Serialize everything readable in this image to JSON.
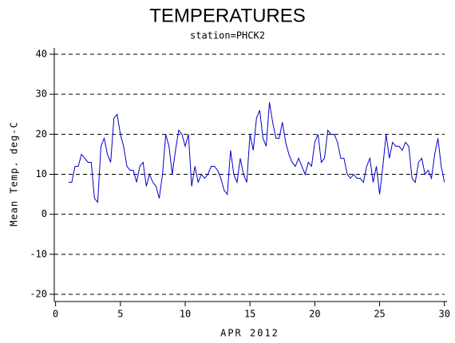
{
  "chart_data": {
    "type": "line",
    "title": "TEMPERATURES",
    "subtitle": "station=PHCK2",
    "x_label": "APR 2012",
    "y_label": "Mean Temp. deg-C",
    "xlim": [
      -0.1,
      30.2
    ],
    "xticks": [
      0,
      5,
      10,
      15,
      20,
      25,
      30
    ],
    "ylim": [
      -21.8,
      41.6
    ],
    "yticks": [
      -20,
      -10,
      0,
      10,
      20,
      30,
      40
    ],
    "grid": true,
    "x": [
      1,
      1.25,
      1.5,
      1.75,
      2,
      2.25,
      2.5,
      2.75,
      3,
      3.25,
      3.5,
      3.75,
      4,
      4.25,
      4.5,
      4.75,
      5,
      5.25,
      5.5,
      5.75,
      6,
      6.25,
      6.5,
      6.75,
      7,
      7.25,
      7.5,
      7.75,
      8,
      8.25,
      8.5,
      8.75,
      9,
      9.25,
      9.5,
      9.75,
      10,
      10.25,
      10.5,
      10.75,
      11,
      11.25,
      11.5,
      11.75,
      12,
      12.25,
      12.5,
      12.75,
      13,
      13.25,
      13.5,
      13.75,
      14,
      14.25,
      14.5,
      14.75,
      15,
      15.25,
      15.5,
      15.75,
      16,
      16.25,
      16.5,
      16.75,
      17,
      17.25,
      17.5,
      17.75,
      18,
      18.25,
      18.5,
      18.75,
      19,
      19.25,
      19.5,
      19.75,
      20,
      20.25,
      20.5,
      20.75,
      21,
      21.25,
      21.5,
      21.75,
      22,
      22.25,
      22.5,
      22.75,
      23,
      23.25,
      23.5,
      23.75,
      24,
      24.25,
      24.5,
      24.75,
      25,
      25.25,
      25.5,
      25.75,
      26,
      26.25,
      26.5,
      26.75,
      27,
      27.25,
      27.5,
      27.75,
      28,
      28.25,
      28.5,
      28.75,
      29,
      29.25,
      29.5,
      29.75,
      30
    ],
    "series": [
      {
        "name": "Mean Temp",
        "color": "#0000cc",
        "values": [
          8,
          8,
          12,
          12,
          15,
          14,
          13,
          13,
          4,
          3,
          17,
          19,
          15,
          13,
          24,
          25,
          20,
          17,
          12,
          11,
          11,
          8,
          12,
          13,
          7,
          10,
          8,
          7,
          4,
          10,
          20,
          17,
          10,
          16,
          21,
          20,
          17,
          20,
          7,
          12,
          8,
          10,
          9,
          10,
          12,
          12,
          11,
          9,
          6,
          5,
          16,
          10,
          8,
          14,
          10,
          8,
          20,
          16,
          24,
          26,
          19,
          17,
          28,
          23,
          19,
          19,
          23,
          18,
          15,
          13,
          12,
          14,
          12,
          10,
          13,
          12,
          18,
          20,
          13,
          14,
          21,
          20,
          20,
          18,
          14,
          14,
          10,
          9,
          10,
          9,
          9,
          8,
          12,
          14,
          8,
          12,
          5,
          12,
          20,
          14,
          18,
          17,
          17,
          16,
          18,
          17,
          9,
          8,
          13,
          14,
          10,
          11,
          9,
          15,
          19,
          12,
          8
        ]
      }
    ]
  }
}
